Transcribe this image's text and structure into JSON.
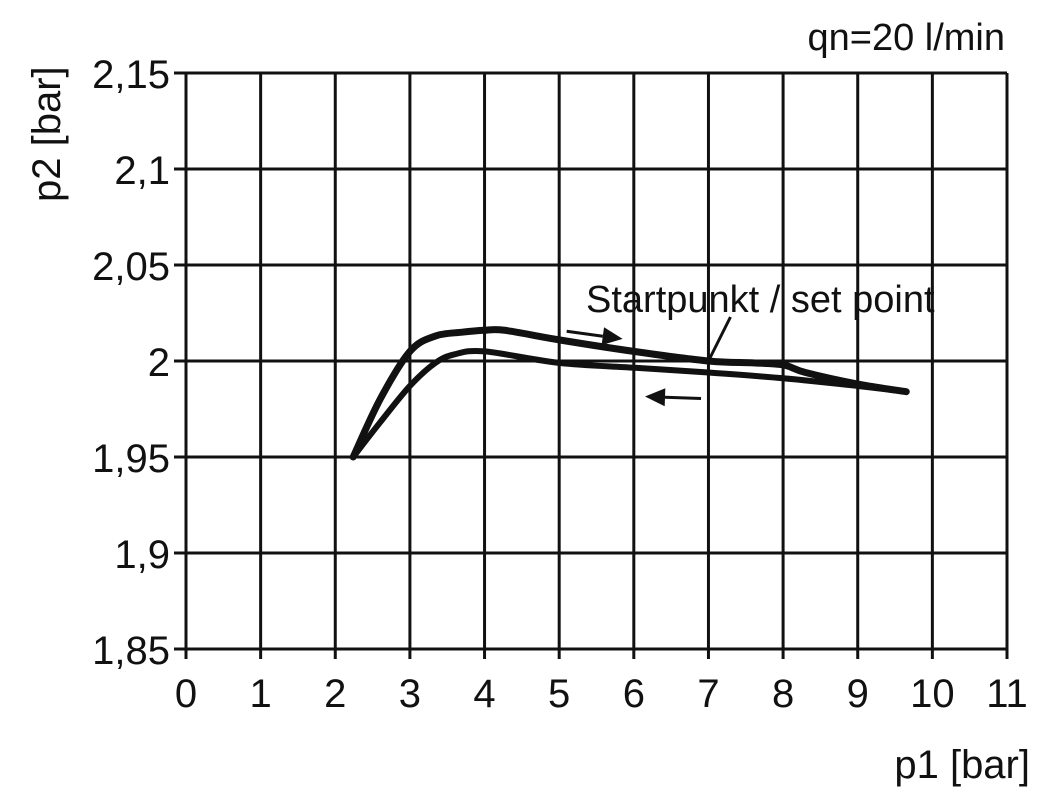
{
  "chart_data": {
    "type": "line",
    "title": "",
    "annotation_top": "qn=20 l/min",
    "annotation_curve": "Startpunkt / set point",
    "xlabel": "p1 [bar]",
    "ylabel": "p2 [bar]",
    "xlim": [
      0,
      11
    ],
    "ylim": [
      1.85,
      2.15
    ],
    "x_ticks": [
      "0",
      "1",
      "2",
      "3",
      "4",
      "5",
      "6",
      "7",
      "8",
      "9",
      "10",
      "11"
    ],
    "y_ticks": [
      "2,15",
      "2,1",
      "2,05",
      "2",
      "1,95",
      "1,9",
      "1,85"
    ],
    "y_tick_values": [
      2.15,
      2.1,
      2.05,
      2.0,
      1.95,
      1.9,
      1.85
    ],
    "grid": true,
    "color": "#111111",
    "series": [
      {
        "direction": "increasing p1",
        "x": [
          2.24,
          2.6,
          3.0,
          3.34,
          3.7,
          4.0,
          4.27,
          5.0,
          6.0,
          7.0,
          7.6,
          8.0,
          8.3,
          9.0,
          9.65
        ],
        "y": [
          1.95,
          1.98,
          2.005,
          2.013,
          2.015,
          2.016,
          2.016,
          2.011,
          2.005,
          2.0,
          1.999,
          1.998,
          1.994,
          1.988,
          1.984
        ]
      },
      {
        "direction": "decreasing p1",
        "x": [
          9.65,
          9.0,
          8.0,
          7.0,
          6.0,
          5.0,
          4.0,
          3.6,
          3.34,
          3.0,
          2.6,
          2.24
        ],
        "y": [
          1.984,
          1.987,
          1.991,
          1.994,
          1.9965,
          1.999,
          2.005,
          2.0035,
          1.999,
          1.987,
          1.968,
          1.95
        ]
      }
    ],
    "arrows": [
      {
        "from": [
          5.1,
          2.0155
        ],
        "to": [
          5.85,
          2.0115
        ],
        "meaning": "increasing"
      },
      {
        "from": [
          6.9,
          1.9805
        ],
        "to": [
          6.15,
          1.9815
        ],
        "meaning": "decreasing"
      }
    ],
    "set_point": [
      7.0,
      2.0
    ]
  }
}
